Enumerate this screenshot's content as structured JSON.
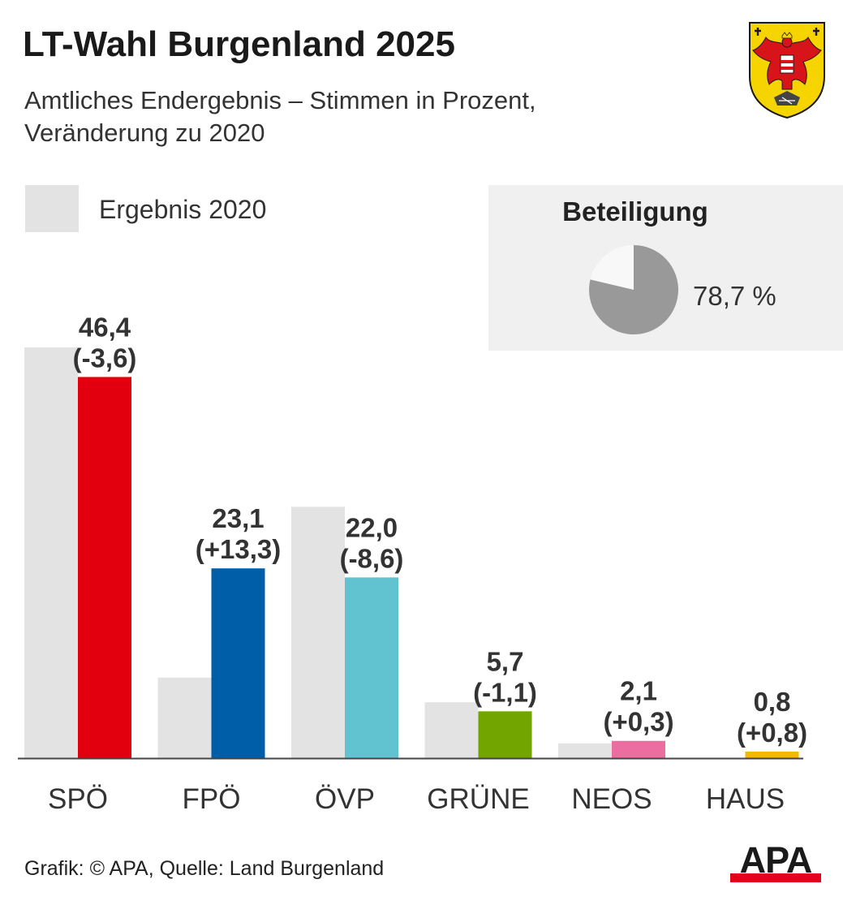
{
  "title": "LT-Wahl Burgenland 2025",
  "subtitle_line1": "Amtliches Endergebnis – Stimmen in Prozent,",
  "subtitle_line2": "Veränderung zu 2020",
  "legend": {
    "label": "Ergebnis 2020",
    "color": "#e3e3e3"
  },
  "turnout": {
    "title": "Beteiligung",
    "value": 78.7,
    "value_label": "78,7 %",
    "color_fill": "#999999",
    "color_rest": "#f8f8f8"
  },
  "source": "Grafik: © APA, Quelle: Land Burgenland",
  "logo": {
    "text": "APA",
    "bar_color": "#e2001a"
  },
  "chart_data": {
    "type": "bar",
    "categories": [
      "SPÖ",
      "FPÖ",
      "ÖVP",
      "GRÜNE",
      "NEOS",
      "HAUS"
    ],
    "series": [
      {
        "name": "Ergebnis 2020",
        "values": [
          50.0,
          9.8,
          30.6,
          6.8,
          1.8,
          0.0
        ],
        "color": "#e3e3e3"
      },
      {
        "values": [
          46.4,
          23.1,
          22.0,
          5.7,
          2.1,
          0.8
        ],
        "colors": [
          "#e2000f",
          "#005ea8",
          "#62c3d0",
          "#72a500",
          "#ea6ea0",
          "#f5b800"
        ]
      }
    ],
    "value_labels": [
      "46,4",
      "23,1",
      "22,0",
      "5,7",
      "2,1",
      "0,8"
    ],
    "change_labels": [
      "(-3,6)",
      "(+13,3)",
      "(-8,6)",
      "(-1,1)",
      "(+0,3)",
      "(+0,8)"
    ],
    "ylim": [
      0,
      50
    ],
    "grid": false
  }
}
